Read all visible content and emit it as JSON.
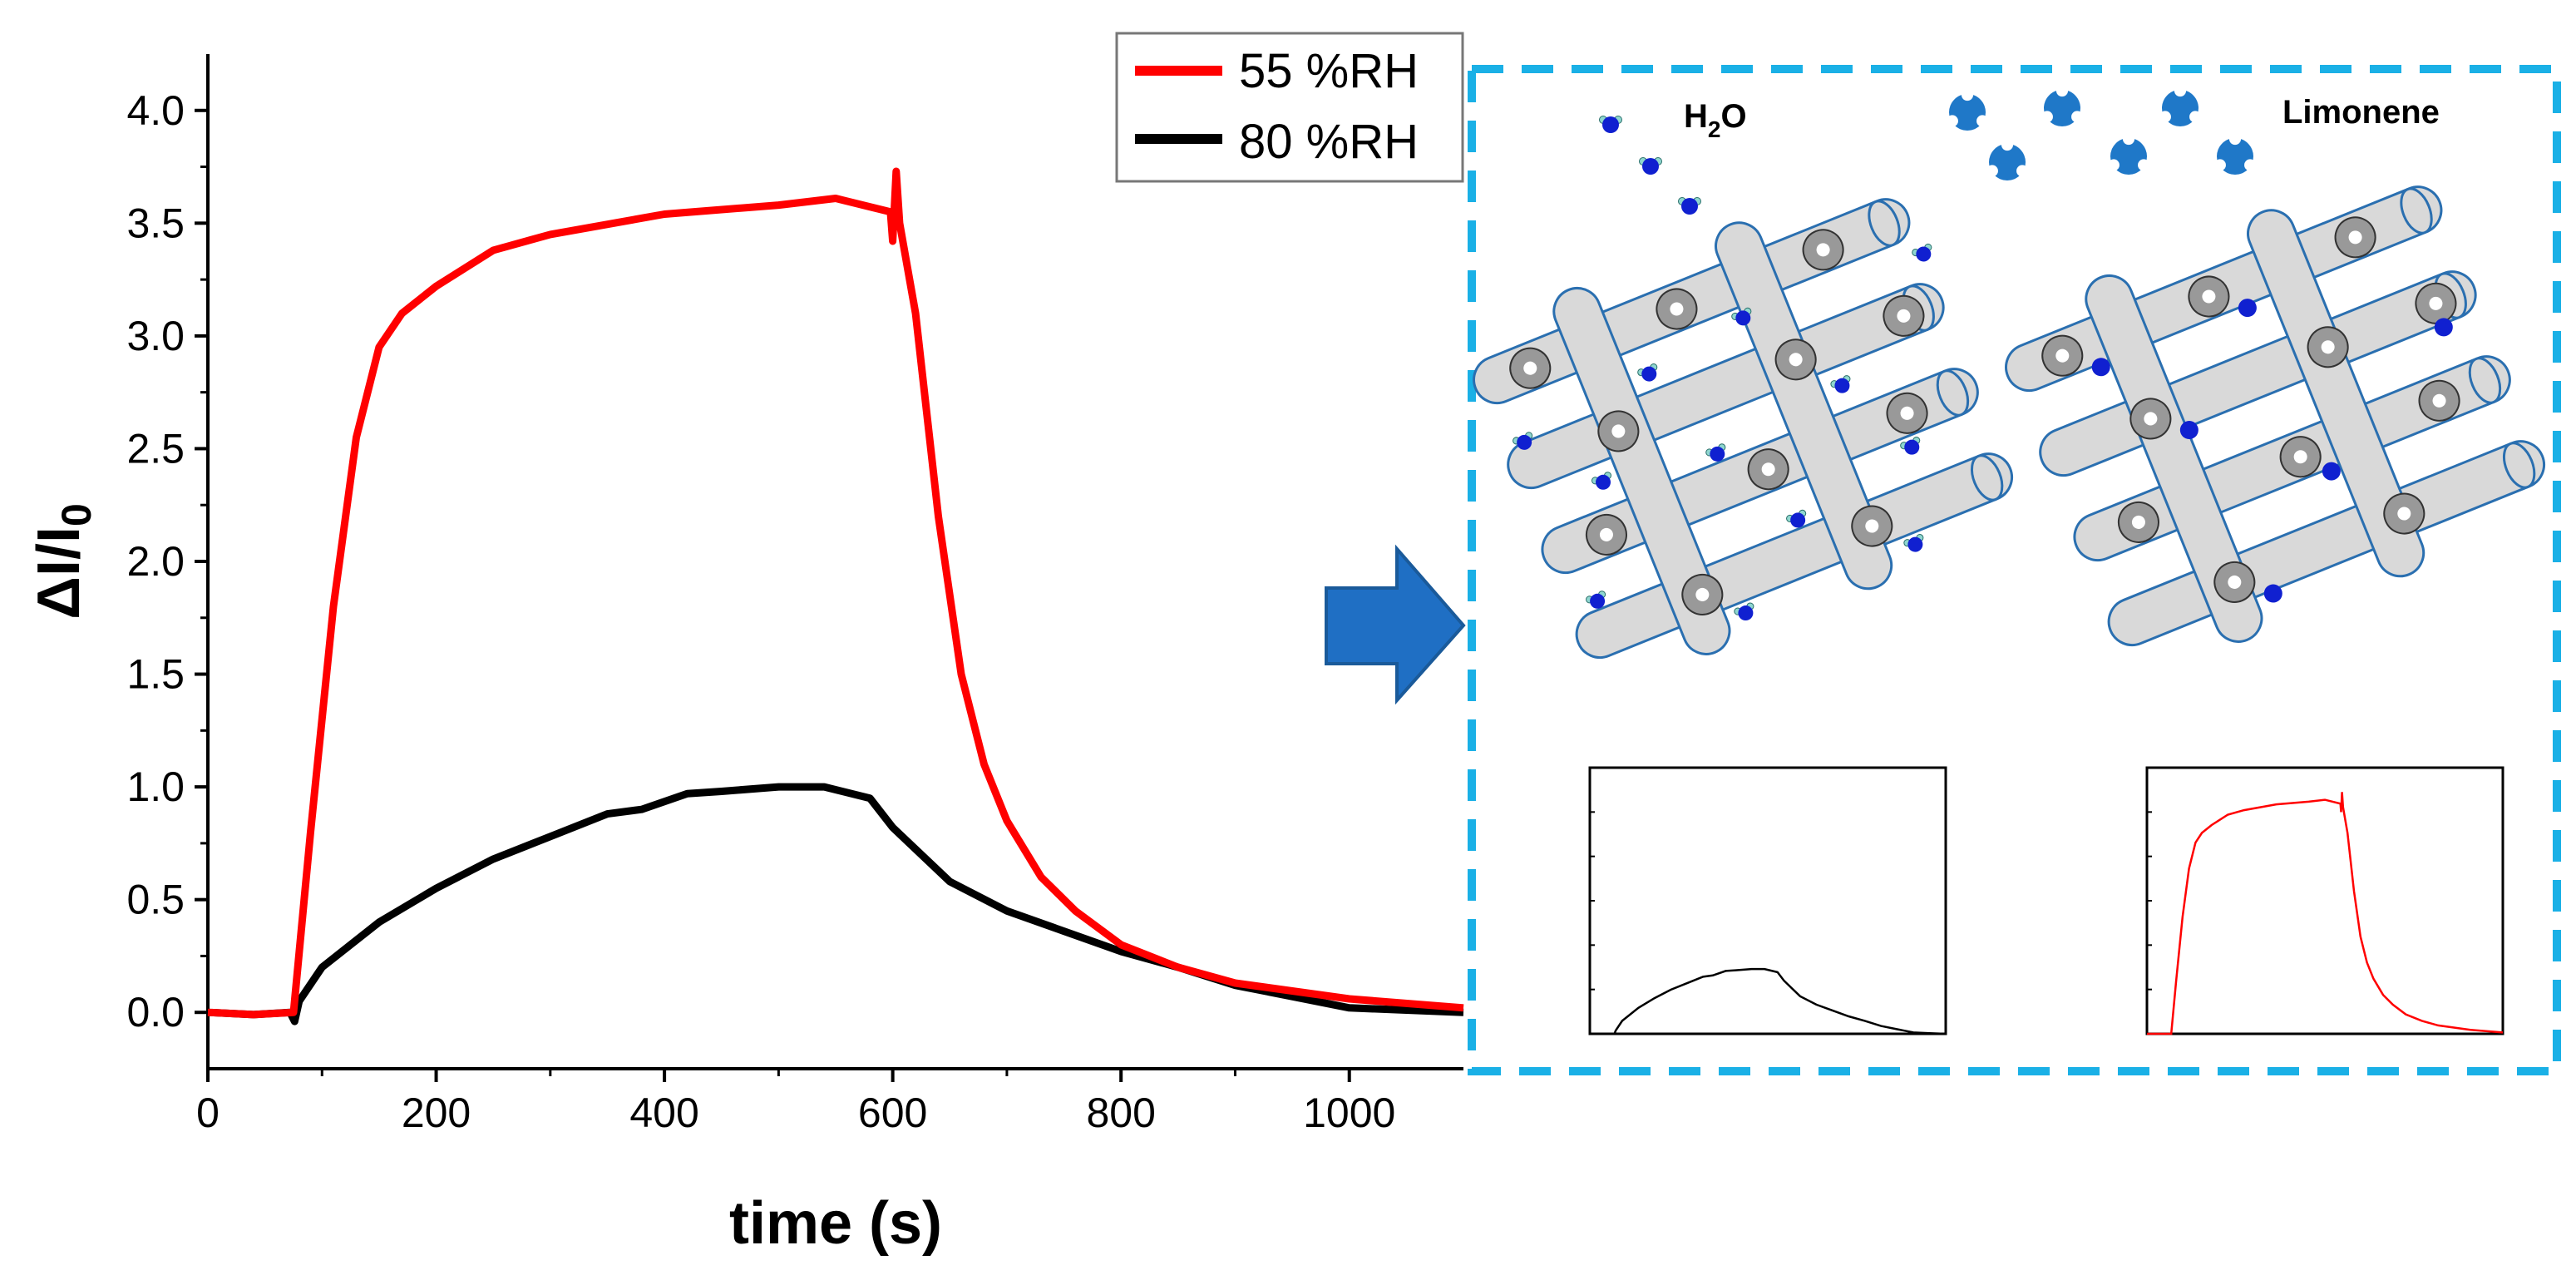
{
  "chart_data": {
    "type": "line",
    "xlabel": "time (s)",
    "ylabel": "ΔI/I",
    "ylabel_subscript": "0",
    "xlim": [
      0,
      1100
    ],
    "ylim": [
      -0.25,
      4.25
    ],
    "x_ticks": [
      "0",
      "200",
      "400",
      "600",
      "800",
      "1000"
    ],
    "y_ticks": [
      "0.0",
      "0.5",
      "1.0",
      "1.5",
      "2.0",
      "2.5",
      "3.0",
      "3.5",
      "4.0"
    ],
    "legend_position": "top-right",
    "series": [
      {
        "name": "55 %RH",
        "color": "#ff0000",
        "x": [
          0,
          40,
          75,
          90,
          110,
          130,
          150,
          170,
          200,
          250,
          300,
          400,
          500,
          550,
          598,
          600,
          603,
          606,
          620,
          640,
          660,
          680,
          700,
          730,
          760,
          800,
          850,
          900,
          1000,
          1100
        ],
        "y": [
          0.0,
          -0.01,
          0.0,
          0.8,
          1.8,
          2.55,
          2.95,
          3.1,
          3.22,
          3.38,
          3.45,
          3.54,
          3.58,
          3.61,
          3.55,
          3.42,
          3.73,
          3.5,
          3.1,
          2.2,
          1.5,
          1.1,
          0.85,
          0.6,
          0.45,
          0.3,
          0.2,
          0.13,
          0.06,
          0.02
        ]
      },
      {
        "name": "80 %RH",
        "color": "#000000",
        "x": [
          0,
          40,
          72,
          76,
          80,
          100,
          150,
          200,
          250,
          300,
          350,
          380,
          420,
          450,
          500,
          540,
          580,
          600,
          650,
          700,
          750,
          800,
          850,
          900,
          950,
          1000,
          1050,
          1100
        ],
        "y": [
          0.0,
          -0.01,
          0.0,
          -0.04,
          0.05,
          0.2,
          0.4,
          0.55,
          0.68,
          0.78,
          0.88,
          0.9,
          0.97,
          0.98,
          1.0,
          1.0,
          0.95,
          0.82,
          0.58,
          0.45,
          0.36,
          0.27,
          0.2,
          0.12,
          0.07,
          0.02,
          0.01,
          0.0
        ]
      }
    ]
  },
  "schematic": {
    "arrow_color": "#1f6fc4",
    "frame_color": "#1ab0e6",
    "water_label": "H",
    "water_label_sub": "2",
    "water_label_tail": "O",
    "limonene_label": "Limonene",
    "inset_colors": [
      "#000000",
      "#ff0000"
    ]
  }
}
